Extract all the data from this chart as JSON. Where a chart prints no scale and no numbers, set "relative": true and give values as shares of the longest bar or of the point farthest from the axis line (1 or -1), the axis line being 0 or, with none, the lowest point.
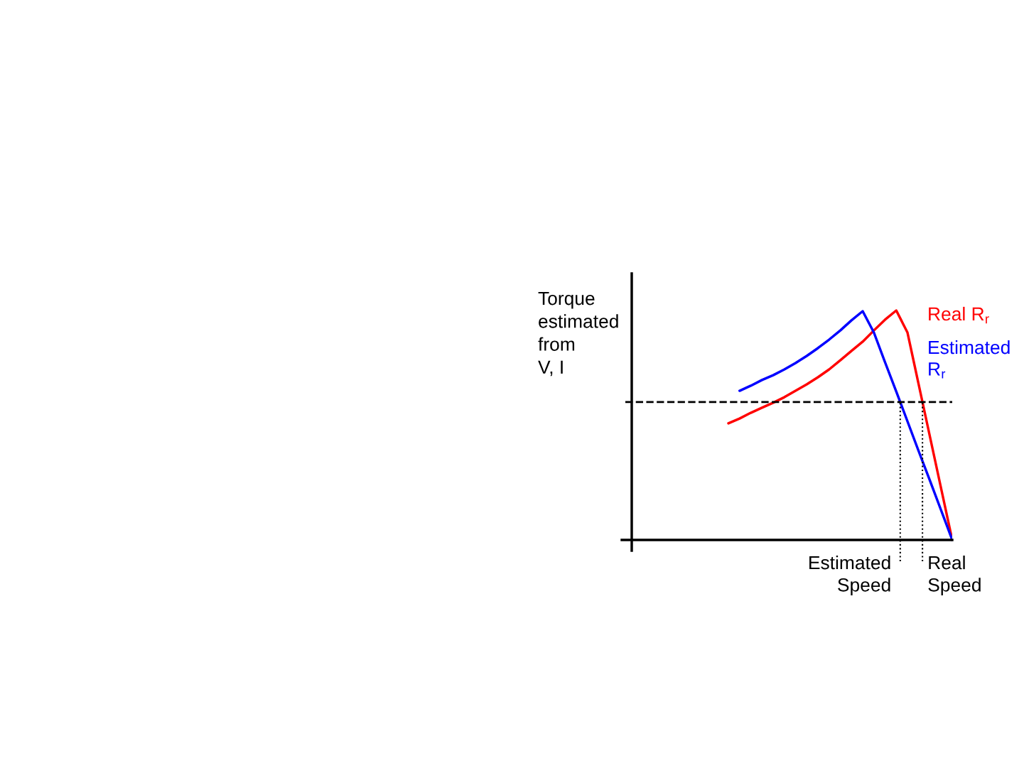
{
  "chart_data": {
    "type": "line",
    "relative": true,
    "categories": [
      null,
      null,
      null,
      null,
      null,
      null,
      null,
      null,
      null,
      null,
      null,
      null,
      null,
      null,
      null,
      null,
      null,
      null,
      null,
      null,
      null
    ],
    "series": [
      {
        "name": "Real R$_{r}$",
        "color": "#ff0000",
        "values": [
          0.508,
          0.529,
          0.554,
          0.576,
          0.598,
          0.622,
          0.65,
          0.678,
          0.709,
          0.743,
          0.783,
          0.824,
          0.864,
          0.913,
          0.96,
          1.0,
          0.904,
          0.678,
          0.452,
          0.226,
          0.0
        ]
      },
      {
        "name": "Estimated\nR$_{r}$",
        "color": "#0000ff",
        "values": [
          null,
          0.65,
          0.672,
          0.697,
          0.718,
          0.743,
          0.771,
          0.802,
          0.836,
          0.873,
          0.913,
          0.957,
          0.997,
          0.904,
          0.774,
          0.647,
          0.517,
          0.387,
          0.26,
          0.13,
          0.0
        ]
      }
    ],
    "ref_lines": [
      {
        "axis": "y",
        "value": 0.601,
        "color": "#000000",
        "line_style": "dashed"
      }
    ],
    "annotations": [
      "Torque\nestimated\nfrom\nV, I",
      "Real\nSpeed",
      "Estimated\nSpeed"
    ],
    "marker": "none",
    "line_style": "solid"
  }
}
